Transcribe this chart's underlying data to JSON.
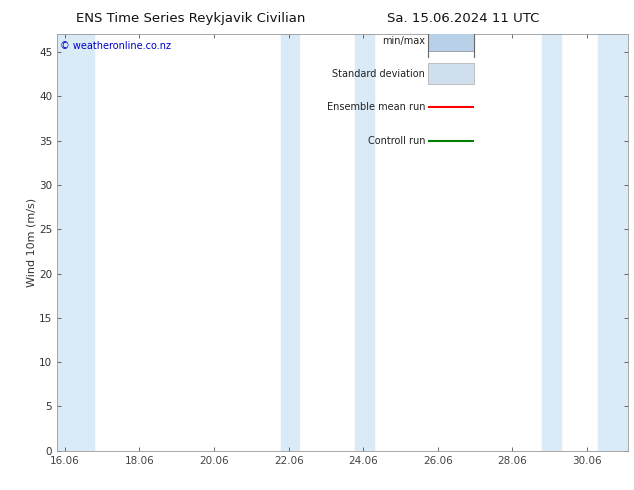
{
  "title_left": "ENS Time Series Reykjavik Civilian",
  "title_right": "Sa. 15.06.2024 11 UTC",
  "ylabel": "Wind 10m (m/s)",
  "watermark": "© weatheronline.co.nz",
  "xlim_left": 15.85,
  "xlim_right": 31.15,
  "ylim_bottom": 0,
  "ylim_top": 47,
  "yticks": [
    0,
    5,
    10,
    15,
    20,
    25,
    30,
    35,
    40,
    45
  ],
  "xtick_positions": [
    16.06,
    18.06,
    20.06,
    22.06,
    24.06,
    26.06,
    28.06,
    30.06
  ],
  "xtick_labels": [
    "16.06",
    "18.06",
    "20.06",
    "22.06",
    "24.06",
    "26.06",
    "28.06",
    "30.06"
  ],
  "bg_color": "#ffffff",
  "plot_bg_color": "#ffffff",
  "shaded_bands": [
    {
      "xmin": 15.85,
      "xmax": 16.85,
      "color": "#daeaf7"
    },
    {
      "xmin": 21.85,
      "xmax": 22.35,
      "color": "#daeaf7"
    },
    {
      "xmin": 23.85,
      "xmax": 24.35,
      "color": "#daeaf7"
    },
    {
      "xmin": 28.85,
      "xmax": 29.35,
      "color": "#daeaf7"
    },
    {
      "xmin": 30.35,
      "xmax": 31.15,
      "color": "#daeaf7"
    }
  ],
  "legend_entries": [
    {
      "label": "min/max",
      "color": "#b8d0e8",
      "type": "minmax"
    },
    {
      "label": "Standard deviation",
      "color": "#d0dfee",
      "type": "stddev"
    },
    {
      "label": "Ensemble mean run",
      "color": "#ff0000",
      "type": "line"
    },
    {
      "label": "Controll run",
      "color": "#008000",
      "type": "line"
    }
  ],
  "title_fontsize": 9.5,
  "axis_label_fontsize": 8,
  "tick_fontsize": 7.5,
  "legend_fontsize": 7,
  "watermark_color": "#0000cc",
  "border_color": "#aaaaaa",
  "spine_color": "#999999"
}
